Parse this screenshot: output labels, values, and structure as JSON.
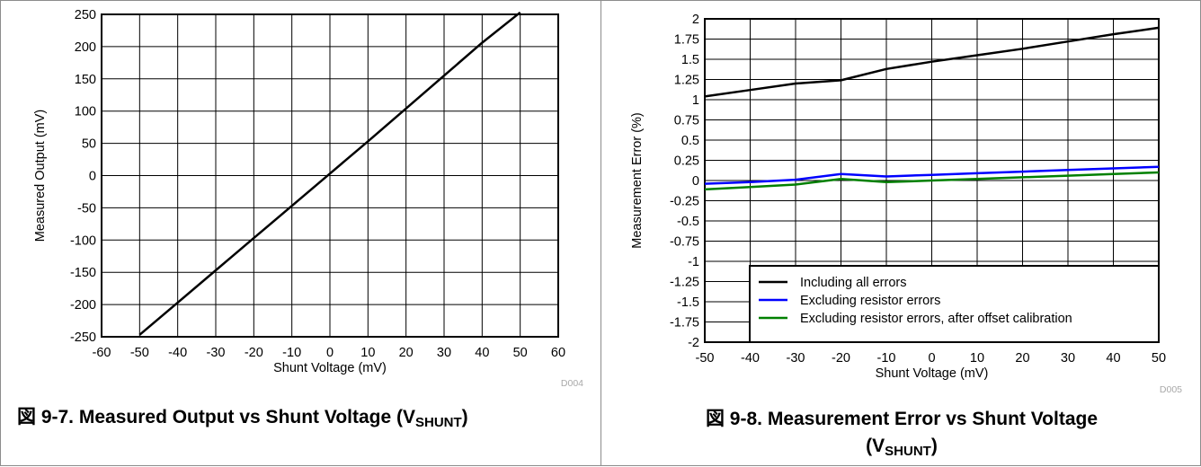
{
  "chart_data": [
    {
      "type": "line",
      "xlabel": "Shunt Voltage (mV)",
      "ylabel": "Measured Output (mV)",
      "xlim": [
        -60,
        60
      ],
      "ylim": [
        -250,
        250
      ],
      "xticks": [
        -60,
        -50,
        -40,
        -30,
        -20,
        -10,
        0,
        10,
        20,
        30,
        40,
        50,
        60
      ],
      "yticks": [
        250,
        200,
        150,
        100,
        50,
        0,
        -50,
        -100,
        -150,
        -200,
        -250
      ],
      "grid": true,
      "series": [
        {
          "color": "#000000",
          "x": [
            -50,
            -40,
            -30,
            -20,
            -10,
            0,
            10,
            20,
            30,
            40,
            50
          ],
          "y": [
            -247,
            -197,
            -147,
            -97,
            -47,
            3,
            53,
            104,
            155,
            206,
            253
          ]
        }
      ],
      "figure_id": "D004"
    },
    {
      "type": "line",
      "xlabel": "Shunt Voltage (mV)",
      "ylabel": "Measurement Error (%)",
      "xlim": [
        -50,
        50
      ],
      "ylim": [
        -2,
        2
      ],
      "xticks": [
        -50,
        -40,
        -30,
        -20,
        -10,
        0,
        10,
        20,
        30,
        40,
        50
      ],
      "yticks": [
        "2",
        "1.75",
        "1.5",
        "1.25",
        "1",
        "0.75",
        "0.5",
        "0.25",
        "0",
        "-0.25",
        "-0.5",
        "-0.75",
        "-1",
        "-1.25",
        "-1.5",
        "-1.75",
        "-2"
      ],
      "grid": true,
      "legend_position": "bottom-right",
      "series": [
        {
          "name": "Including all errors",
          "color": "#000000",
          "x": [
            -50,
            -40,
            -30,
            -20,
            -10,
            0,
            10,
            20,
            30,
            40,
            50
          ],
          "y": [
            1.04,
            1.12,
            1.2,
            1.24,
            1.38,
            1.47,
            1.55,
            1.63,
            1.72,
            1.81,
            1.89
          ]
        },
        {
          "name": "Excluding resistor errors",
          "color": "#0000ff",
          "x": [
            -50,
            -40,
            -30,
            -20,
            -10,
            0,
            10,
            20,
            30,
            40,
            50
          ],
          "y": [
            -0.04,
            -0.02,
            0.01,
            0.08,
            0.05,
            0.07,
            0.09,
            0.11,
            0.13,
            0.15,
            0.17
          ]
        },
        {
          "name": "Excluding resistor errors, after offset calibration",
          "color": "#008000",
          "x": [
            -50,
            -40,
            -30,
            -20,
            -10,
            0,
            10,
            20,
            30,
            40,
            50
          ],
          "y": [
            -0.11,
            -0.08,
            -0.05,
            0.02,
            -0.02,
            0.0,
            0.02,
            0.04,
            0.06,
            0.08,
            0.1
          ]
        }
      ],
      "figure_id": "D005"
    }
  ],
  "captions": {
    "left": {
      "prefix": "図 9-7. Measured Output vs Shunt Voltage (V",
      "sub": "SHUNT",
      "suffix": ")"
    },
    "right": {
      "line1": "図 9-8. Measurement Error vs Shunt Voltage",
      "line2_prefix": "(V",
      "sub": "SHUNT",
      "suffix": ")"
    }
  }
}
